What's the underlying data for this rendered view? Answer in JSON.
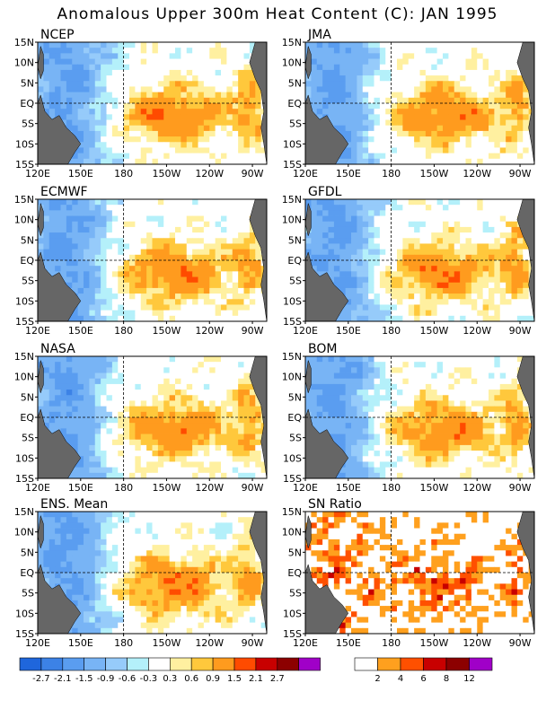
{
  "title": "Anomalous Upper 300m Heat Content (C): JAN 1995",
  "lon_ticks": [
    "120E",
    "150E",
    "180",
    "150W",
    "120W",
    "90W"
  ],
  "lat_ticks": [
    "15N",
    "10N",
    "5N",
    "EQ",
    "5S",
    "10S",
    "15S"
  ],
  "panels": [
    {
      "label": "NCEP",
      "kind": "anom",
      "seed": 1
    },
    {
      "label": "JMA",
      "kind": "anom",
      "seed": 2
    },
    {
      "label": "ECMWF",
      "kind": "anom",
      "seed": 3
    },
    {
      "label": "GFDL",
      "kind": "anom",
      "seed": 4
    },
    {
      "label": "NASA",
      "kind": "anom",
      "seed": 5
    },
    {
      "label": "BOM",
      "kind": "anom",
      "seed": 6
    },
    {
      "label": "ENS. Mean",
      "kind": "anom",
      "seed": 7
    },
    {
      "label": "SN Ratio",
      "kind": "snr",
      "seed": 8
    }
  ],
  "colorbar_anom": {
    "labels": [
      "-2.7",
      "-2.1",
      "-1.5",
      "-0.9",
      "-0.6",
      "-0.3",
      "0.3",
      "0.6",
      "0.9",
      "1.5",
      "2.1",
      "2.7"
    ],
    "colors": [
      "#1f66dc",
      "#3c82e6",
      "#5a9df0",
      "#78b4f5",
      "#96cbfa",
      "#b4f0fa",
      "#ffffff",
      "#fff0a0",
      "#ffc83c",
      "#ff9b1e",
      "#ff4b00",
      "#c80000",
      "#8c0000",
      "#a000c8"
    ]
  },
  "colorbar_snr": {
    "labels": [
      "2",
      "4",
      "6",
      "8",
      "12"
    ],
    "colors": [
      "#ffffff",
      "#ffa01e",
      "#ff5000",
      "#c80000",
      "#8c0000",
      "#a000c8"
    ]
  },
  "chart_data": {
    "type": "heatmap",
    "title": "Anomalous Upper 300m Heat Content (C): JAN 1995",
    "x_range": [
      "120E",
      "80W"
    ],
    "y_range": [
      "15S",
      "15N"
    ],
    "x_ticks": [
      "120E",
      "150E",
      "180",
      "150W",
      "120W",
      "90W"
    ],
    "y_ticks": [
      "15N",
      "10N",
      "5N",
      "EQ",
      "5S",
      "10S",
      "15S"
    ],
    "panels": [
      "NCEP",
      "JMA",
      "ECMWF",
      "GFDL",
      "NASA",
      "BOM",
      "ENS. Mean",
      "SN Ratio"
    ],
    "anomaly_levels": [
      -2.7,
      -2.1,
      -1.5,
      -0.9,
      -0.6,
      -0.3,
      0.3,
      0.6,
      0.9,
      1.5,
      2.1,
      2.7
    ],
    "snr_levels": [
      2,
      4,
      6,
      8,
      12
    ]
  }
}
